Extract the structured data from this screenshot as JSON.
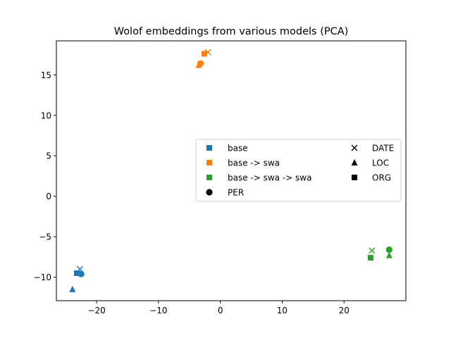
{
  "chart_data": {
    "type": "scatter",
    "title": "Wolof embeddings from various models (PCA)",
    "xlabel": "",
    "ylabel": "",
    "xlim": [
      -26.5,
      30
    ],
    "ylim": [
      -12.9,
      19.2
    ],
    "xticks": [
      -20,
      -10,
      0,
      10,
      20
    ],
    "xtick_labels": [
      "−20",
      "−10",
      "0",
      "10",
      "20"
    ],
    "yticks": [
      -10,
      -5,
      0,
      5,
      10,
      15
    ],
    "ytick_labels": [
      "−10",
      "−5",
      "0",
      "5",
      "10",
      "15"
    ],
    "grid": false,
    "legend_position": "center-right",
    "series": [
      {
        "name": "base",
        "color": "#1f77b4",
        "points": [
          {
            "x": -22.5,
            "y": -9.6,
            "entity": "PER"
          },
          {
            "x": -22.7,
            "y": -9.0,
            "entity": "DATE"
          },
          {
            "x": -23.9,
            "y": -11.5,
            "entity": "LOC"
          },
          {
            "x": -23.2,
            "y": -9.5,
            "entity": "ORG"
          }
        ]
      },
      {
        "name": "base -> swa",
        "color": "#ff7f0e",
        "points": [
          {
            "x": -3.2,
            "y": 16.4,
            "entity": "PER"
          },
          {
            "x": -2.0,
            "y": 17.8,
            "entity": "DATE"
          },
          {
            "x": -3.5,
            "y": 16.2,
            "entity": "LOC"
          },
          {
            "x": -2.6,
            "y": 17.6,
            "entity": "ORG"
          }
        ]
      },
      {
        "name": "base -> swa -> swa",
        "color": "#2ca02c",
        "points": [
          {
            "x": 27.3,
            "y": -6.6,
            "entity": "PER"
          },
          {
            "x": 24.5,
            "y": -6.7,
            "entity": "DATE"
          },
          {
            "x": 27.3,
            "y": -7.3,
            "entity": "LOC"
          },
          {
            "x": 24.3,
            "y": -7.6,
            "entity": "ORG"
          }
        ]
      }
    ],
    "marker_legend": [
      {
        "entity": "PER",
        "label": "PER",
        "marker": "circle"
      },
      {
        "entity": "DATE",
        "label": "DATE",
        "marker": "x"
      },
      {
        "entity": "LOC",
        "label": "LOC",
        "marker": "triangle"
      },
      {
        "entity": "ORG",
        "label": "ORG",
        "marker": "square"
      }
    ]
  }
}
